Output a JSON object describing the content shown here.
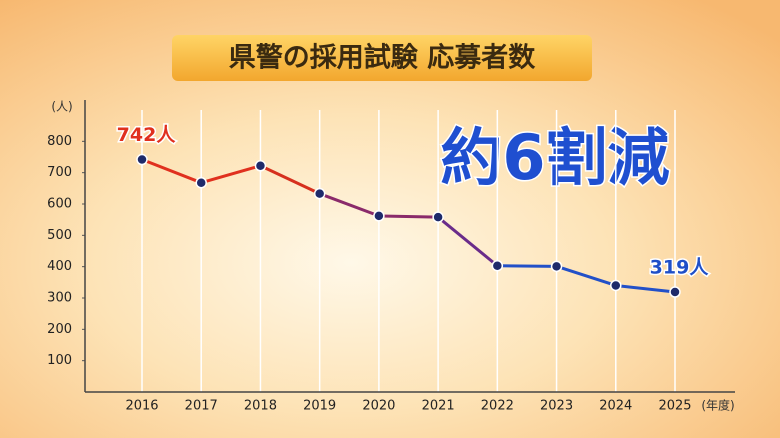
{
  "chart_data": {
    "type": "line",
    "title": "県警の採用試験 応募者数",
    "annotation": "約6割減",
    "y_unit": "(人)",
    "x_unit": "(年度)",
    "categories": [
      "2016",
      "2017",
      "2018",
      "2019",
      "2020",
      "2021",
      "2022",
      "2023",
      "2024",
      "2025"
    ],
    "series": [
      {
        "name": "応募者数",
        "colors": [
          "#e0301e",
          "#d6301e",
          "#8a2a6a",
          "#6a2c8a",
          "#2250c8",
          "#2250c8"
        ],
        "values": [
          742,
          668,
          722,
          633,
          562,
          558,
          403,
          401,
          340,
          319
        ],
        "value_labels": [
          "742人",
          null,
          null,
          null,
          null,
          null,
          null,
          null,
          null,
          "319人"
        ],
        "label_colors": [
          "#e0301e",
          "#1f4fc8"
        ]
      }
    ],
    "ylim": [
      0,
      900
    ],
    "yticks": [
      100,
      200,
      300,
      400,
      500,
      600,
      700,
      800
    ],
    "grid": true
  }
}
